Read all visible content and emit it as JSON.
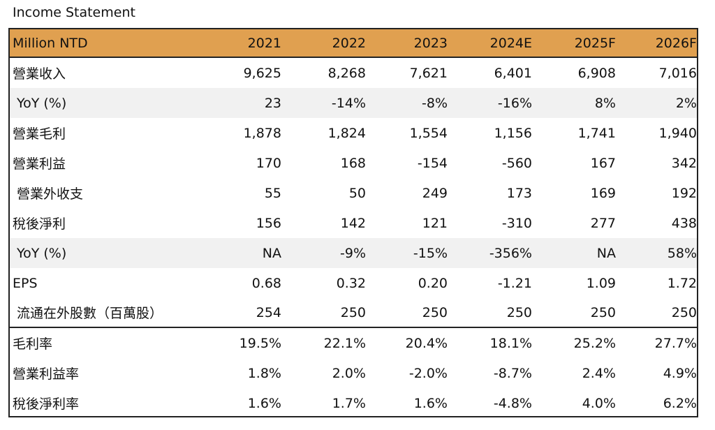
{
  "title": "Income Statement",
  "header": {
    "label": "Million NTD",
    "years": [
      "2021",
      "2022",
      "2023",
      "2024E",
      "2025F",
      "2026F"
    ]
  },
  "rows": [
    {
      "label": "營業收入",
      "values": [
        "9,625",
        "8,268",
        "7,621",
        "6,401",
        "6,908",
        "7,016"
      ]
    },
    {
      "label": "YoY (%)",
      "values": [
        "23",
        "-14%",
        "-8%",
        "-16%",
        "8%",
        "2%"
      ]
    },
    {
      "label": "營業毛利",
      "values": [
        "1,878",
        "1,824",
        "1,554",
        "1,156",
        "1,741",
        "1,940"
      ]
    },
    {
      "label": "營業利益",
      "values": [
        "170",
        "168",
        "-154",
        "-560",
        "167",
        "342"
      ]
    },
    {
      "label": "營業外收支",
      "values": [
        "55",
        "50",
        "249",
        "173",
        "169",
        "192"
      ]
    },
    {
      "label": "稅後淨利",
      "values": [
        "156",
        "142",
        "121",
        "-310",
        "277",
        "438"
      ]
    },
    {
      "label": "YoY (%)",
      "values": [
        "NA",
        "-9%",
        "-15%",
        "-356%",
        "NA",
        "58%"
      ]
    },
    {
      "label": "EPS",
      "values": [
        "0.68",
        "0.32",
        "0.20",
        "-1.21",
        "1.09",
        "1.72"
      ]
    },
    {
      "label": "流通在外股數（百萬股）",
      "values": [
        "254",
        "250",
        "250",
        "250",
        "250",
        "250"
      ]
    },
    {
      "label": "毛利率",
      "values": [
        "19.5%",
        "22.1%",
        "20.4%",
        "18.1%",
        "25.2%",
        "27.7%"
      ]
    },
    {
      "label": "營業利益率",
      "values": [
        "1.8%",
        "2.0%",
        "-2.0%",
        "-8.7%",
        "2.4%",
        "4.9%"
      ]
    },
    {
      "label": "稅後淨利率",
      "values": [
        "1.6%",
        "1.7%",
        "1.6%",
        "-4.8%",
        "4.0%",
        "6.2%"
      ]
    }
  ]
}
